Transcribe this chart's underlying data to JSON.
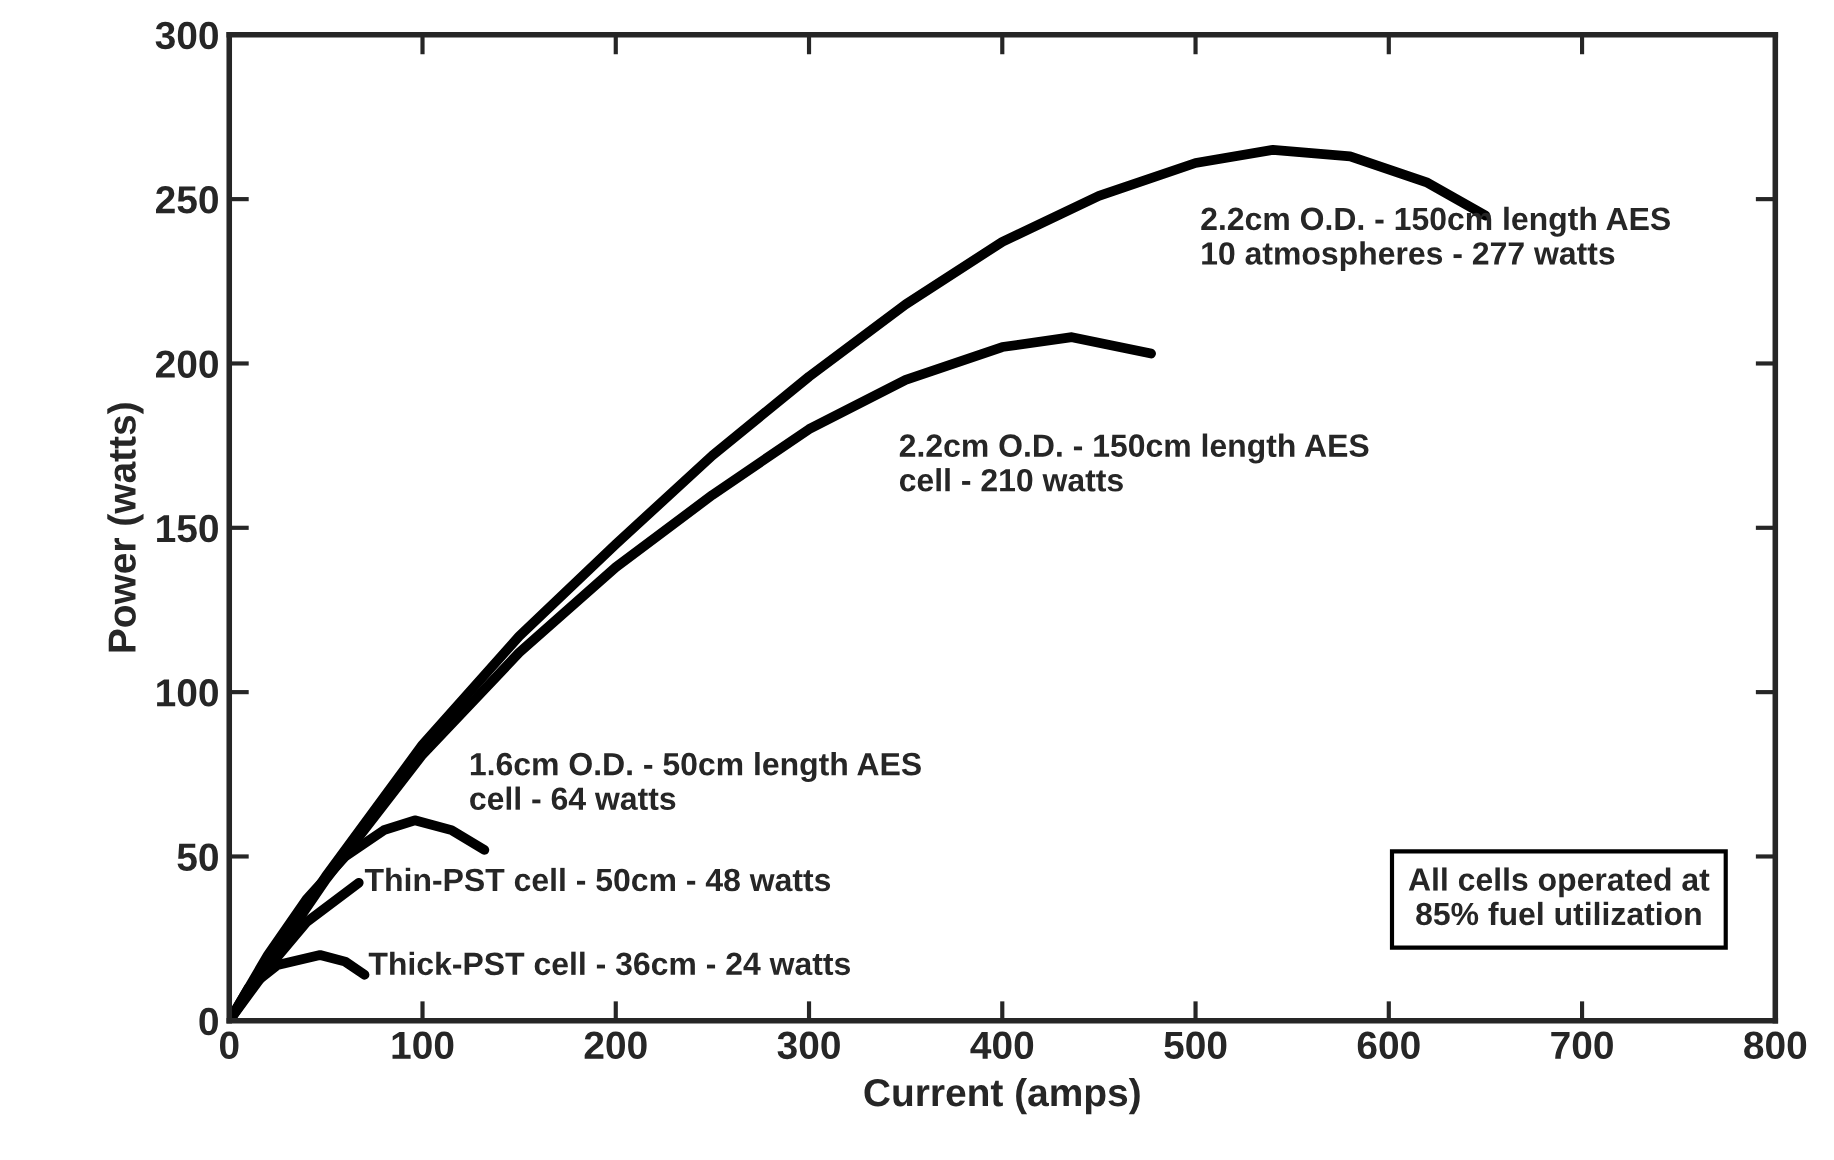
{
  "chart_data": {
    "type": "line",
    "xlabel": "Current (amps)",
    "ylabel": "Power (watts)",
    "xlim": [
      0,
      800
    ],
    "xticks": [
      0,
      100,
      200,
      300,
      400,
      500,
      600,
      700,
      800
    ],
    "ylim": [
      0,
      300
    ],
    "yticks": [
      0,
      50,
      100,
      150,
      200,
      250,
      300
    ],
    "grid": false,
    "legend": false,
    "marker": "none",
    "line_style": "solid",
    "series": [
      {
        "color": "#000000",
        "x": [
          0,
          25,
          50,
          100,
          150,
          200,
          250,
          300,
          350,
          400,
          450,
          500,
          540,
          580,
          620,
          650
        ],
        "values": [
          0,
          22,
          44,
          84,
          117,
          145,
          172,
          196,
          218,
          237,
          251,
          261,
          265,
          263,
          255,
          245
        ]
      },
      {
        "color": "#000000",
        "x": [
          0,
          50,
          100,
          150,
          200,
          250,
          300,
          350,
          400,
          436,
          477
        ],
        "values": [
          0,
          43,
          81,
          112,
          138,
          160,
          180,
          195,
          205,
          208,
          203
        ]
      },
      {
        "color": "#000000",
        "x": [
          0,
          20,
          40,
          60,
          80,
          96,
          115,
          132
        ],
        "values": [
          0,
          20,
          37,
          50,
          58,
          61,
          58,
          52
        ]
      },
      {
        "color": "#000000",
        "x": [
          0,
          20,
          40,
          67
        ],
        "values": [
          0,
          16,
          30,
          42
        ]
      },
      {
        "color": "#000000",
        "x": [
          0,
          10,
          25,
          47,
          60,
          70
        ],
        "values": [
          0,
          10,
          17,
          20,
          18,
          14
        ]
      }
    ],
    "annotations": [
      "2.2cm O.D. - 150cm length AES\n10 atmospheres - 277 watts",
      "2.2cm O.D. - 150cm length AES\ncell - 210 watts",
      "1.6cm O.D. - 50cm length AES\ncell - 64 watts",
      "Thin-PST cell - 50cm - 48 watts",
      "Thick-PST cell - 36cm - 24 watts",
      "All cells operated at\n85% fuel utilization"
    ]
  }
}
